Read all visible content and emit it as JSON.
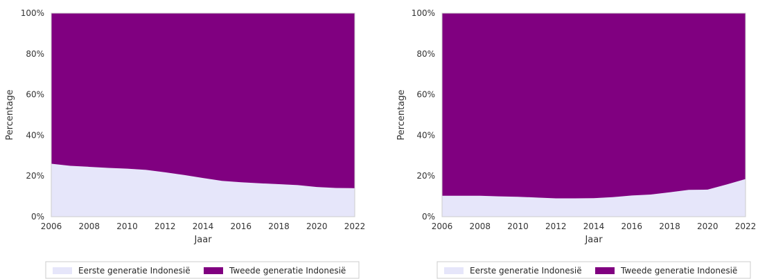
{
  "chart_data": [
    {
      "type": "area",
      "stacked": "percent",
      "xlabel": "Jaar",
      "ylabel": "Percentage",
      "xlim": [
        2006,
        2022
      ],
      "ylim": [
        0,
        100
      ],
      "x_ticks": [
        "2006",
        "2008",
        "2010",
        "2012",
        "2014",
        "2016",
        "2018",
        "2020",
        "2022"
      ],
      "y_ticks": [
        "0%",
        "20%",
        "40%",
        "60%",
        "80%",
        "100%"
      ],
      "grid": false,
      "legend_position": "bottom",
      "x": [
        2006,
        2007,
        2008,
        2009,
        2010,
        2011,
        2012,
        2013,
        2014,
        2015,
        2016,
        2017,
        2018,
        2019,
        2020,
        2021,
        2022
      ],
      "series": [
        {
          "name": "Eerste generatie Indonesië",
          "color": "#e6e6fa",
          "values": [
            26.0,
            25.0,
            24.5,
            24.0,
            23.6,
            23.0,
            21.8,
            20.5,
            19.0,
            17.6,
            16.9,
            16.4,
            16.0,
            15.5,
            14.6,
            14.1,
            14.0
          ]
        },
        {
          "name": "Tweede generatie Indonesië",
          "color": "#800080",
          "values": [
            74.0,
            75.0,
            75.5,
            76.0,
            76.4,
            77.0,
            78.2,
            79.5,
            81.0,
            82.4,
            83.1,
            83.6,
            84.0,
            84.5,
            85.4,
            85.9,
            86.0
          ]
        }
      ]
    },
    {
      "type": "area",
      "stacked": "percent",
      "xlabel": "Jaar",
      "ylabel": "Percentage",
      "xlim": [
        2006,
        2022
      ],
      "ylim": [
        0,
        100
      ],
      "x_ticks": [
        "2006",
        "2008",
        "2010",
        "2012",
        "2014",
        "2016",
        "2018",
        "2020",
        "2022"
      ],
      "y_ticks": [
        "0%",
        "20%",
        "40%",
        "60%",
        "80%",
        "100%"
      ],
      "grid": false,
      "legend_position": "bottom",
      "x": [
        2006,
        2007,
        2008,
        2009,
        2010,
        2011,
        2012,
        2013,
        2014,
        2015,
        2016,
        2017,
        2018,
        2019,
        2020,
        2021,
        2022
      ],
      "series": [
        {
          "name": "Eerste generatie Indonesië",
          "color": "#e6e6fa",
          "values": [
            10.3,
            10.3,
            10.3,
            10.0,
            9.8,
            9.4,
            9.0,
            9.0,
            9.1,
            9.6,
            10.4,
            10.9,
            12.0,
            13.2,
            13.3,
            15.8,
            18.5
          ]
        },
        {
          "name": "Tweede generatie Indonesië",
          "color": "#800080",
          "values": [
            89.7,
            89.7,
            89.7,
            90.0,
            90.2,
            90.6,
            91.0,
            91.0,
            90.9,
            90.4,
            89.6,
            89.1,
            88.0,
            86.8,
            86.7,
            84.2,
            81.5
          ]
        }
      ]
    }
  ]
}
